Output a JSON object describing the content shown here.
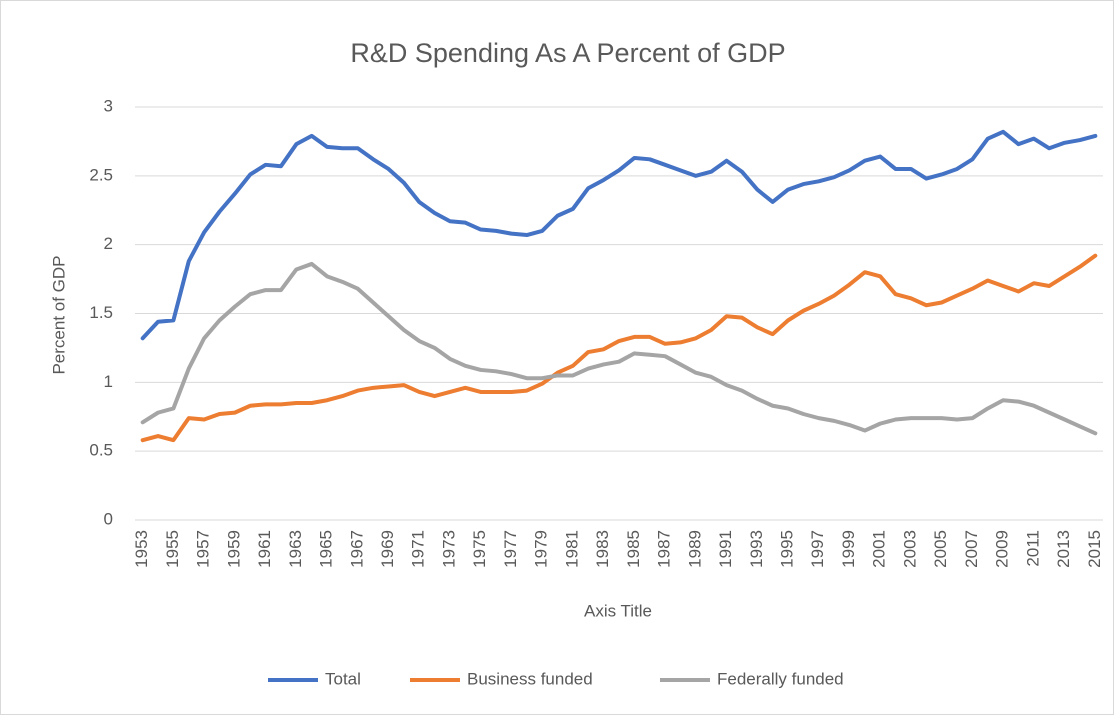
{
  "chart_data": {
    "type": "line",
    "title": "R&D Spending As A Percent of GDP",
    "y_label": "Percent of GDP",
    "x_label": "Axis Title",
    "categories": [
      "1953",
      null,
      "1955",
      null,
      "1957",
      null,
      "1959",
      null,
      "1961",
      null,
      "1963",
      null,
      "1965",
      null,
      "1967",
      null,
      "1969",
      null,
      "1971",
      null,
      "1973",
      null,
      "1975",
      null,
      "1977",
      null,
      "1979",
      null,
      "1981",
      null,
      "1983",
      null,
      "1985",
      null,
      "1987",
      null,
      "1989",
      null,
      "1991",
      null,
      "1993",
      null,
      "1995",
      null,
      "1997",
      null,
      "1999",
      null,
      "2001",
      null,
      "2003",
      null,
      "2005",
      null,
      "2007",
      null,
      "2009",
      null,
      "2011",
      null,
      "2013",
      null,
      "2015"
    ],
    "series": [
      {
        "name": "Total",
        "color": "#4472c4",
        "values": [
          1.32,
          1.44,
          1.45,
          1.88,
          2.09,
          2.24,
          2.37,
          2.51,
          2.58,
          2.57,
          2.73,
          2.79,
          2.71,
          2.7,
          2.7,
          2.62,
          2.55,
          2.45,
          2.31,
          2.23,
          2.17,
          2.16,
          2.11,
          2.1,
          2.08,
          2.07,
          2.1,
          2.21,
          2.26,
          2.41,
          2.47,
          2.54,
          2.63,
          2.62,
          2.58,
          2.54,
          2.5,
          2.53,
          2.61,
          2.53,
          2.4,
          2.31,
          2.4,
          2.44,
          2.46,
          2.49,
          2.54,
          2.61,
          2.64,
          2.55,
          2.55,
          2.48,
          2.51,
          2.55,
          2.62,
          2.77,
          2.82,
          2.73,
          2.77,
          2.7,
          2.74,
          2.76,
          2.79
        ]
      },
      {
        "name": "Business funded",
        "color": "#ed7d31",
        "values": [
          0.58,
          0.61,
          0.58,
          0.74,
          0.73,
          0.77,
          0.78,
          0.83,
          0.84,
          0.84,
          0.85,
          0.85,
          0.87,
          0.9,
          0.94,
          0.96,
          0.97,
          0.98,
          0.93,
          0.9,
          0.93,
          0.96,
          0.93,
          0.93,
          0.93,
          0.94,
          0.99,
          1.07,
          1.12,
          1.22,
          1.24,
          1.3,
          1.33,
          1.33,
          1.28,
          1.29,
          1.32,
          1.38,
          1.48,
          1.47,
          1.4,
          1.35,
          1.45,
          1.52,
          1.57,
          1.63,
          1.71,
          1.8,
          1.77,
          1.64,
          1.61,
          1.56,
          1.58,
          1.63,
          1.68,
          1.74,
          1.7,
          1.66,
          1.72,
          1.7,
          1.77,
          1.84,
          1.92
        ]
      },
      {
        "name": "Federally funded",
        "color": "#a5a5a5",
        "values": [
          0.71,
          0.78,
          0.81,
          1.1,
          1.32,
          1.45,
          1.55,
          1.64,
          1.67,
          1.67,
          1.82,
          1.86,
          1.77,
          1.73,
          1.68,
          1.58,
          1.48,
          1.38,
          1.3,
          1.25,
          1.17,
          1.12,
          1.09,
          1.08,
          1.06,
          1.03,
          1.03,
          1.05,
          1.05,
          1.1,
          1.13,
          1.15,
          1.21,
          1.2,
          1.19,
          1.13,
          1.07,
          1.04,
          0.98,
          0.94,
          0.88,
          0.83,
          0.81,
          0.77,
          0.74,
          0.72,
          0.69,
          0.65,
          0.7,
          0.73,
          0.74,
          0.74,
          0.74,
          0.73,
          0.74,
          0.81,
          0.87,
          0.86,
          0.83,
          0.78,
          0.73,
          0.68,
          0.63
        ]
      }
    ],
    "ylim": [
      0,
      3
    ],
    "yticks": [
      0,
      0.5,
      1,
      1.5,
      2,
      2.5,
      3
    ],
    "grid": true,
    "legend": "bottom"
  }
}
